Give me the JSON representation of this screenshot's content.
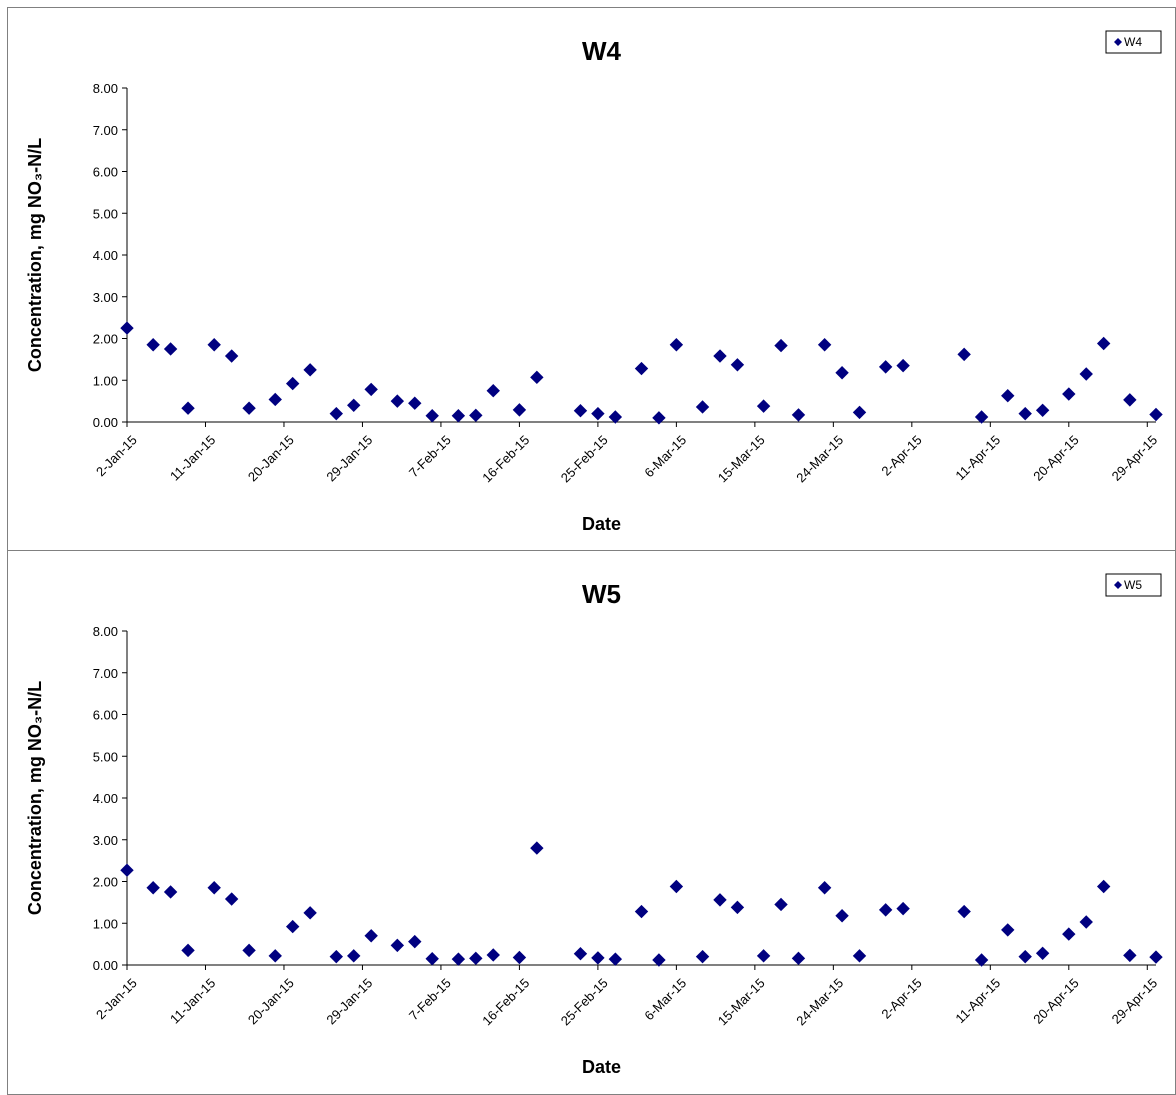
{
  "chart_data": [
    {
      "type": "scatter",
      "title": "W4",
      "xlabel": "Date",
      "ylabel": "Concentration, mg NO₃-N/L",
      "ylim": [
        0,
        8
      ],
      "yticks": [
        "0.00",
        "1.00",
        "2.00",
        "3.00",
        "4.00",
        "5.00",
        "6.00",
        "7.00",
        "8.00"
      ],
      "xlim": [
        "2015-01-02",
        "2015-04-30"
      ],
      "xticks": [
        "2-Jan-15",
        "11-Jan-15",
        "20-Jan-15",
        "29-Jan-15",
        "7-Feb-15",
        "16-Feb-15",
        "25-Feb-15",
        "6-Mar-15",
        "15-Mar-15",
        "24-Mar-15",
        "2-Apr-15",
        "11-Apr-15",
        "20-Apr-15",
        "29-Apr-15"
      ],
      "legend": "top-right",
      "grid": false,
      "marker_color": "#000080",
      "series": [
        {
          "name": "W4",
          "points": [
            [
              "2015-01-02",
              2.25
            ],
            [
              "2015-01-05",
              1.85
            ],
            [
              "2015-01-07",
              1.75
            ],
            [
              "2015-01-09",
              0.33
            ],
            [
              "2015-01-12",
              1.85
            ],
            [
              "2015-01-14",
              1.58
            ],
            [
              "2015-01-16",
              0.33
            ],
            [
              "2015-01-19",
              0.54
            ],
            [
              "2015-01-21",
              0.92
            ],
            [
              "2015-01-23",
              1.25
            ],
            [
              "2015-01-26",
              0.2
            ],
            [
              "2015-01-28",
              0.4
            ],
            [
              "2015-01-30",
              0.78
            ],
            [
              "2015-02-02",
              0.5
            ],
            [
              "2015-02-04",
              0.45
            ],
            [
              "2015-02-06",
              0.15
            ],
            [
              "2015-02-09",
              0.15
            ],
            [
              "2015-02-11",
              0.16
            ],
            [
              "2015-02-13",
              0.75
            ],
            [
              "2015-02-16",
              0.29
            ],
            [
              "2015-02-18",
              1.07
            ],
            [
              "2015-02-23",
              0.27
            ],
            [
              "2015-02-25",
              0.2
            ],
            [
              "2015-02-27",
              0.12
            ],
            [
              "2015-03-02",
              1.28
            ],
            [
              "2015-03-04",
              0.1
            ],
            [
              "2015-03-06",
              1.85
            ],
            [
              "2015-03-09",
              0.36
            ],
            [
              "2015-03-11",
              1.58
            ],
            [
              "2015-03-13",
              1.37
            ],
            [
              "2015-03-16",
              0.38
            ],
            [
              "2015-03-18",
              1.83
            ],
            [
              "2015-03-20",
              0.17
            ],
            [
              "2015-03-23",
              1.85
            ],
            [
              "2015-03-25",
              1.18
            ],
            [
              "2015-03-27",
              0.23
            ],
            [
              "2015-03-30",
              1.32
            ],
            [
              "2015-04-01",
              1.35
            ],
            [
              "2015-04-08",
              1.62
            ],
            [
              "2015-04-10",
              0.12
            ],
            [
              "2015-04-13",
              0.63
            ],
            [
              "2015-04-15",
              0.2
            ],
            [
              "2015-04-17",
              0.28
            ],
            [
              "2015-04-20",
              0.67
            ],
            [
              "2015-04-22",
              1.15
            ],
            [
              "2015-04-24",
              1.88
            ],
            [
              "2015-04-27",
              0.53
            ],
            [
              "2015-04-30",
              0.18
            ]
          ]
        }
      ]
    },
    {
      "type": "scatter",
      "title": "W5",
      "xlabel": "Date",
      "ylabel": "Concentration, mg NO₃-N/L",
      "ylim": [
        0,
        8
      ],
      "yticks": [
        "0.00",
        "1.00",
        "2.00",
        "3.00",
        "4.00",
        "5.00",
        "6.00",
        "7.00",
        "8.00"
      ],
      "xlim": [
        "2015-01-02",
        "2015-04-30"
      ],
      "xticks": [
        "2-Jan-15",
        "11-Jan-15",
        "20-Jan-15",
        "29-Jan-15",
        "7-Feb-15",
        "16-Feb-15",
        "25-Feb-15",
        "6-Mar-15",
        "15-Mar-15",
        "24-Mar-15",
        "2-Apr-15",
        "11-Apr-15",
        "20-Apr-15",
        "29-Apr-15"
      ],
      "legend": "top-right",
      "grid": false,
      "marker_color": "#000080",
      "series": [
        {
          "name": "W5",
          "points": [
            [
              "2015-01-02",
              2.27
            ],
            [
              "2015-01-05",
              1.85
            ],
            [
              "2015-01-07",
              1.75
            ],
            [
              "2015-01-09",
              0.35
            ],
            [
              "2015-01-12",
              1.85
            ],
            [
              "2015-01-14",
              1.58
            ],
            [
              "2015-01-16",
              0.35
            ],
            [
              "2015-01-19",
              0.22
            ],
            [
              "2015-01-21",
              0.92
            ],
            [
              "2015-01-23",
              1.25
            ],
            [
              "2015-01-26",
              0.2
            ],
            [
              "2015-01-28",
              0.22
            ],
            [
              "2015-01-30",
              0.7
            ],
            [
              "2015-02-02",
              0.47
            ],
            [
              "2015-02-04",
              0.56
            ],
            [
              "2015-02-06",
              0.15
            ],
            [
              "2015-02-09",
              0.14
            ],
            [
              "2015-02-11",
              0.16
            ],
            [
              "2015-02-13",
              0.24
            ],
            [
              "2015-02-16",
              0.18
            ],
            [
              "2015-02-18",
              2.8
            ],
            [
              "2015-02-23",
              0.27
            ],
            [
              "2015-02-25",
              0.17
            ],
            [
              "2015-02-27",
              0.14
            ],
            [
              "2015-03-02",
              1.28
            ],
            [
              "2015-03-04",
              0.12
            ],
            [
              "2015-03-06",
              1.88
            ],
            [
              "2015-03-09",
              0.2
            ],
            [
              "2015-03-11",
              1.56
            ],
            [
              "2015-03-13",
              1.38
            ],
            [
              "2015-03-16",
              0.22
            ],
            [
              "2015-03-18",
              1.45
            ],
            [
              "2015-03-20",
              0.16
            ],
            [
              "2015-03-23",
              1.85
            ],
            [
              "2015-03-25",
              1.18
            ],
            [
              "2015-03-27",
              0.22
            ],
            [
              "2015-03-30",
              1.32
            ],
            [
              "2015-04-01",
              1.35
            ],
            [
              "2015-04-08",
              1.28
            ],
            [
              "2015-04-10",
              0.12
            ],
            [
              "2015-04-13",
              0.84
            ],
            [
              "2015-04-15",
              0.2
            ],
            [
              "2015-04-17",
              0.28
            ],
            [
              "2015-04-20",
              0.74
            ],
            [
              "2015-04-22",
              1.03
            ],
            [
              "2015-04-24",
              1.88
            ],
            [
              "2015-04-27",
              0.23
            ],
            [
              "2015-04-30",
              0.19
            ]
          ]
        }
      ]
    }
  ]
}
